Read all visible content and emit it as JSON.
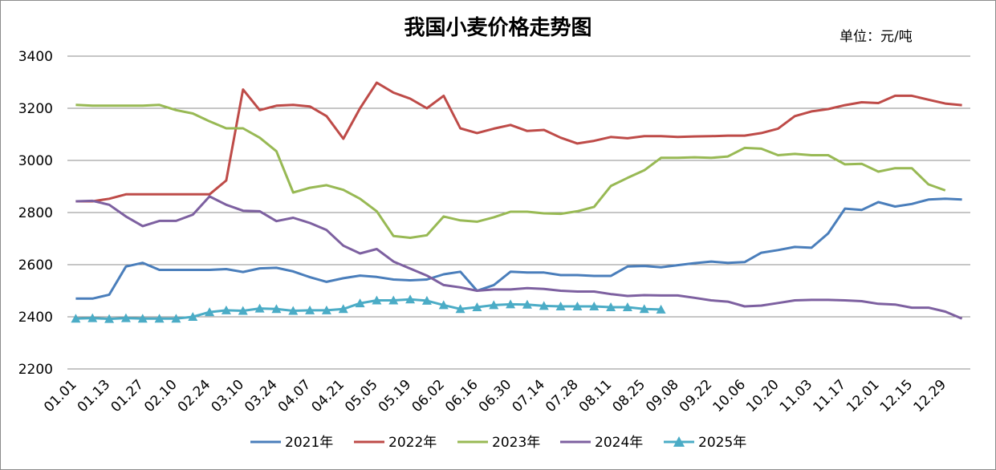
{
  "chart_data": {
    "type": "line",
    "title": "我国小麦价格走势图",
    "unit_label": "单位：元/吨",
    "ylim": [
      2200,
      3400
    ],
    "yticks": [
      2200,
      2400,
      2600,
      2800,
      3000,
      3200,
      3400
    ],
    "x_tick_labels": [
      "01.01",
      "01.13",
      "01.27",
      "02.10",
      "02.24",
      "03.10",
      "03.24",
      "04.07",
      "04.21",
      "05.05",
      "05.19",
      "06.02",
      "06.16",
      "06.30",
      "07.14",
      "07.28",
      "08.11",
      "08.25",
      "09.08",
      "09.22",
      "10.06",
      "10.20",
      "11.03",
      "11.17",
      "12.01",
      "12.15",
      "12.29"
    ],
    "grid": true,
    "legend_position": "bottom",
    "series": [
      {
        "name": "2021年",
        "color": "#4a7ebb",
        "marker": "none",
        "values": [
          2470,
          2470,
          2485,
          2593,
          2607,
          2580,
          2580,
          2580,
          2580,
          2583,
          2572,
          2586,
          2588,
          2574,
          2552,
          2534,
          2548,
          2558,
          2553,
          2543,
          2540,
          2543,
          2563,
          2573,
          2500,
          2522,
          2573,
          2570,
          2570,
          2560,
          2560,
          2557,
          2557,
          2593,
          2595,
          2590,
          2598,
          2606,
          2612,
          2607,
          2610,
          2646,
          2656,
          2668,
          2665,
          2720,
          2815,
          2810,
          2840,
          2823,
          2833,
          2850,
          2853,
          2850
        ]
      },
      {
        "name": "2022年",
        "color": "#be4b48",
        "marker": "none",
        "values": [
          2843,
          2843,
          2853,
          2870,
          2870,
          2870,
          2870,
          2870,
          2870,
          2923,
          3272,
          3193,
          3210,
          3213,
          3207,
          3170,
          3083,
          3200,
          3298,
          3260,
          3237,
          3200,
          3248,
          3123,
          3105,
          3122,
          3136,
          3113,
          3117,
          3087,
          3065,
          3075,
          3090,
          3085,
          3093,
          3093,
          3090,
          3092,
          3093,
          3095,
          3095,
          3105,
          3122,
          3170,
          3188,
          3197,
          3212,
          3223,
          3220,
          3248,
          3248,
          3233,
          3218,
          3212
        ]
      },
      {
        "name": "2023年",
        "color": "#98b954",
        "marker": "none",
        "values": [
          3213,
          3210,
          3210,
          3210,
          3210,
          3213,
          3193,
          3180,
          3150,
          3123,
          3123,
          3087,
          3035,
          2877,
          2895,
          2905,
          2887,
          2853,
          2805,
          2710,
          2703,
          2713,
          2785,
          2770,
          2765,
          2782,
          2803,
          2803,
          2797,
          2795,
          2805,
          2822,
          2902,
          2933,
          2962,
          3010,
          3010,
          3012,
          3010,
          3015,
          3048,
          3045,
          3020,
          3025,
          3020,
          3020,
          2985,
          2987,
          2957,
          2970,
          2970,
          2908,
          2885
        ]
      },
      {
        "name": "2024年",
        "color": "#7d60a0",
        "marker": "none",
        "values": [
          2843,
          2845,
          2830,
          2785,
          2748,
          2768,
          2768,
          2792,
          2862,
          2830,
          2807,
          2805,
          2767,
          2780,
          2760,
          2733,
          2673,
          2643,
          2660,
          2612,
          2585,
          2558,
          2522,
          2513,
          2500,
          2505,
          2505,
          2510,
          2507,
          2500,
          2497,
          2497,
          2487,
          2480,
          2483,
          2482,
          2482,
          2473,
          2463,
          2458,
          2440,
          2443,
          2453,
          2463,
          2465,
          2465,
          2463,
          2460,
          2450,
          2447,
          2435,
          2435,
          2420,
          2393
        ]
      },
      {
        "name": "2025年",
        "color": "#4bacc6",
        "marker": "triangle",
        "values": [
          2393,
          2395,
          2392,
          2395,
          2393,
          2393,
          2393,
          2400,
          2418,
          2425,
          2423,
          2432,
          2430,
          2423,
          2425,
          2425,
          2430,
          2452,
          2463,
          2463,
          2467,
          2462,
          2445,
          2430,
          2437,
          2445,
          2448,
          2447,
          2442,
          2440,
          2440,
          2440,
          2437,
          2437,
          2430,
          2428
        ]
      }
    ]
  }
}
